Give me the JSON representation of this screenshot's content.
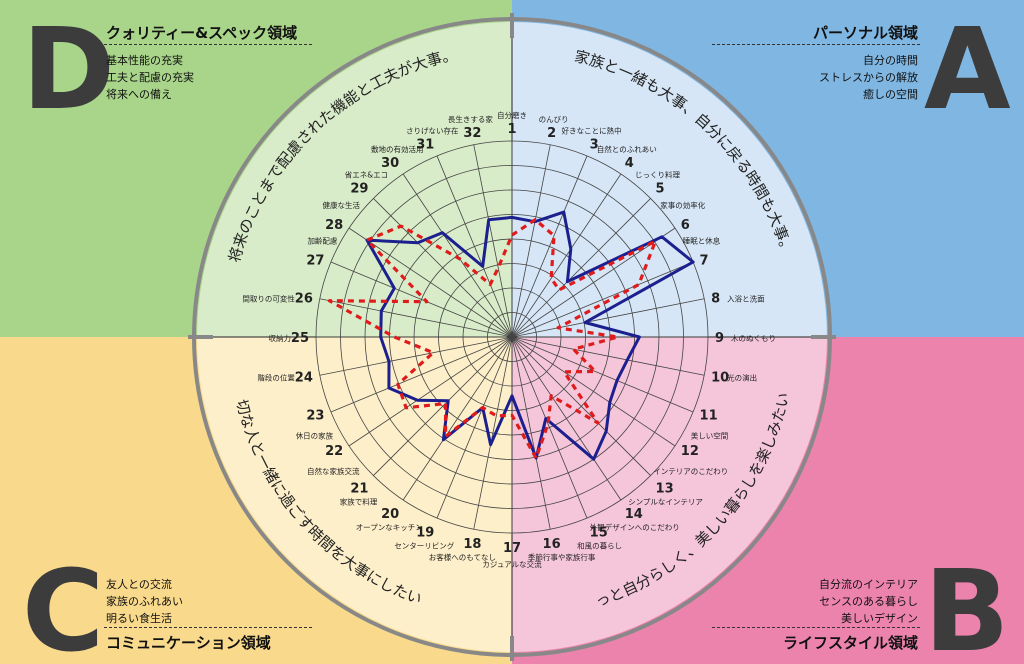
{
  "colors": {
    "quadA": "#7fb6e2",
    "quadB": "#ec83ac",
    "quadC": "#f9d98b",
    "quadD": "#a9d58a",
    "innerA": "#d6e6f6",
    "innerB": "#f5c6d9",
    "innerC": "#fdefca",
    "innerD": "#d9ecc9",
    "solid": "#1c1f8e",
    "dashed": "#e01b1b",
    "grid": "#444444",
    "ring": "#888888"
  },
  "areas": {
    "A": {
      "letter": "A",
      "title": "パーソナル領域",
      "items": [
        "自分の時間",
        "ストレスからの解放",
        "癒しの空間"
      ],
      "arc_text": "家族と一緒も大事、自分に戻る時間も大事。"
    },
    "B": {
      "letter": "B",
      "title": "ライフスタイル領域",
      "items": [
        "自分流のインテリア",
        "センスのある暮らし",
        "美しいデザイン"
      ],
      "arc_text": "もっと自分らしく、美しい暮らしを楽しみたい。"
    },
    "C": {
      "letter": "C",
      "title": "コミュニケーション領域",
      "items": [
        "友人との交流",
        "家族のふれあい",
        "明るい食生活"
      ],
      "arc_text": "大切な人と一緒に過ごす時間を大事にしたい。"
    },
    "D": {
      "letter": "D",
      "title": "クォリティー&スペック領域",
      "items": [
        "基本性能の充実",
        "工夫と配慮の充実",
        "将来への備え"
      ],
      "arc_text": "将来のことまで配慮された機能と工夫が大事。"
    }
  },
  "chart_data": {
    "type": "radar",
    "scale_max": 10,
    "grid_levels": 8,
    "axes": [
      {
        "num": "1",
        "label": "自分磨き"
      },
      {
        "num": "2",
        "label": "のんびり"
      },
      {
        "num": "3",
        "label": "好きなことに熱中"
      },
      {
        "num": "4",
        "label": "自然とのふれあい"
      },
      {
        "num": "5",
        "label": "じっくり料理"
      },
      {
        "num": "6",
        "label": "家事の効率化"
      },
      {
        "num": "7",
        "label": "睡眠と休息"
      },
      {
        "num": "8",
        "label": "入浴と洗面"
      },
      {
        "num": "9",
        "label": "木のぬくもり"
      },
      {
        "num": "10",
        "label": "光の演出"
      },
      {
        "num": "11",
        "label": "美しい空間"
      },
      {
        "num": "12",
        "label": "インテリアのこだわり"
      },
      {
        "num": "13",
        "label": "シンプルなインテリア"
      },
      {
        "num": "14",
        "label": "外観デザインへのこだわり"
      },
      {
        "num": "15",
        "label": "和風の暮らし"
      },
      {
        "num": "16",
        "label": "季節行事や家族行事"
      },
      {
        "num": "17",
        "label": "カジュアルな交流"
      },
      {
        "num": "18",
        "label": "お客様へのもてなし"
      },
      {
        "num": "19",
        "label": "センターリビング"
      },
      {
        "num": "20",
        "label": "オープンなキッチン"
      },
      {
        "num": "21",
        "label": "家族で料理"
      },
      {
        "num": "22",
        "label": "自然な家族交流"
      },
      {
        "num": "23",
        "label": "休日の家族"
      },
      {
        "num": "24",
        "label": "階段の位置"
      },
      {
        "num": "25",
        "label": "収納力"
      },
      {
        "num": "26",
        "label": "間取りの可変性"
      },
      {
        "num": "27",
        "label": "加齢配慮"
      },
      {
        "num": "28",
        "label": "健康な生活"
      },
      {
        "num": "29",
        "label": "省エネ&エコ"
      },
      {
        "num": "30",
        "label": "敷地の有効活用"
      },
      {
        "num": "31",
        "label": "さりげない存在"
      },
      {
        "num": "32",
        "label": "長生きする家"
      }
    ],
    "series": [
      {
        "style": "solid",
        "values": [
          6.1,
          6.0,
          6.9,
          5.4,
          4.0,
          9.2,
          10.0,
          3.8,
          6.5,
          6.0,
          5.8,
          6.0,
          6.8,
          7.5,
          4.5,
          6.3,
          3.0,
          5.6,
          3.9,
          6.3,
          4.6,
          5.8,
          6.8,
          6.4,
          6.7,
          6.8,
          6.5,
          8.9,
          6.8,
          6.4,
          3.9,
          6.1
        ]
      },
      {
        "style": "dashed",
        "values": [
          5.2,
          6.1,
          5.6,
          3.6,
          3.4,
          8.8,
          7.0,
          2.4,
          5.4,
          3.2,
          4.6,
          3.2,
          6.2,
          3.6,
          4.8,
          6.3,
          4.0,
          4.1,
          3.9,
          6.1,
          4.8,
          6.5,
          6.3,
          4.1,
          6.0,
          9.5,
          4.7,
          8.9,
          8.0,
          4.8,
          2.9,
          3.6
        ]
      }
    ]
  }
}
